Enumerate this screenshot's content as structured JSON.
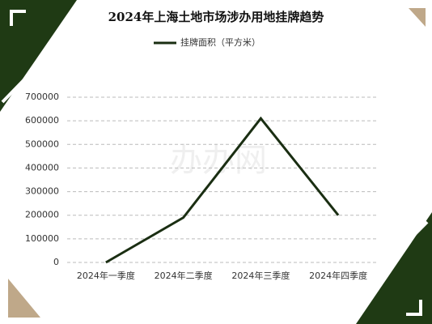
{
  "chart_data": {
    "type": "line",
    "title": "2024年上海土地市场涉办用地挂牌趋势",
    "watermark": "办办网",
    "categories": [
      "2024年一季度",
      "2024年二季度",
      "2024年三季度",
      "2024年四季度"
    ],
    "series": [
      {
        "name": "挂牌面积（平方米）",
        "color": "#1a2e12",
        "values": [
          0,
          190000,
          610000,
          200000
        ]
      }
    ],
    "ylim": [
      0,
      700000
    ],
    "yticks": [
      0,
      100000,
      200000,
      300000,
      400000,
      500000,
      600000,
      700000
    ],
    "grid": true,
    "legend": "top"
  }
}
